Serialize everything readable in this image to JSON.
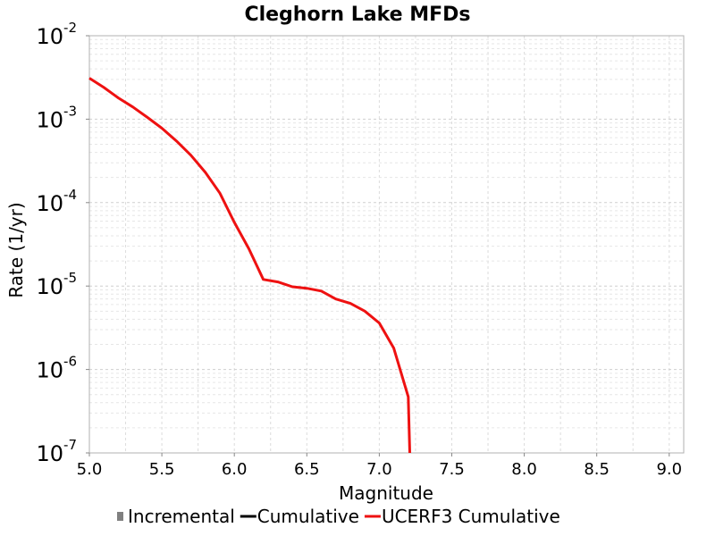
{
  "chart_data": {
    "type": "line",
    "title": "Cleghorn Lake MFDs",
    "xlabel": "Magnitude",
    "ylabel": "Rate (1/yr)",
    "xlim": [
      5.0,
      9.1
    ],
    "ylim": [
      1e-07,
      0.01
    ],
    "yscale": "log",
    "grid": true,
    "x_ticks": [
      "5.0",
      "5.5",
      "6.0",
      "6.5",
      "7.0",
      "7.5",
      "8.0",
      "8.5",
      "9.0"
    ],
    "y_ticks": [
      {
        "base": "10",
        "exp": "-2",
        "value": 0.01
      },
      {
        "base": "10",
        "exp": "-3",
        "value": 0.001
      },
      {
        "base": "10",
        "exp": "-4",
        "value": 0.0001
      },
      {
        "base": "10",
        "exp": "-5",
        "value": 1e-05
      },
      {
        "base": "10",
        "exp": "-6",
        "value": 1e-06
      },
      {
        "base": "10",
        "exp": "-7",
        "value": 1e-07
      }
    ],
    "legend": [
      {
        "label": "Incremental",
        "color": "#808080",
        "marker": "square"
      },
      {
        "label": "Cumulative",
        "color": "#000000",
        "marker": "line"
      },
      {
        "label": "UCERF3 Cumulative",
        "color": "#ee1111",
        "marker": "line"
      }
    ],
    "legend_position": "bottom",
    "series": [
      {
        "name": "UCERF3 Cumulative",
        "color": "#ee1111",
        "x": [
          5.0,
          5.1,
          5.2,
          5.3,
          5.4,
          5.5,
          5.6,
          5.7,
          5.8,
          5.9,
          6.0,
          6.1,
          6.2,
          6.3,
          6.4,
          6.5,
          6.6,
          6.7,
          6.8,
          6.9,
          7.0,
          7.1,
          7.2,
          7.21
        ],
        "y": [
          0.0031,
          0.0024,
          0.0018,
          0.0014,
          0.00105,
          0.00078,
          0.00055,
          0.00037,
          0.00023,
          0.00013,
          5.8e-05,
          2.8e-05,
          1.2e-05,
          1.12e-05,
          9.8e-06,
          9.4e-06,
          8.7e-06,
          7e-06,
          6.2e-06,
          5e-06,
          3.6e-06,
          1.8e-06,
          4.7e-07,
          1e-07
        ]
      }
    ]
  }
}
